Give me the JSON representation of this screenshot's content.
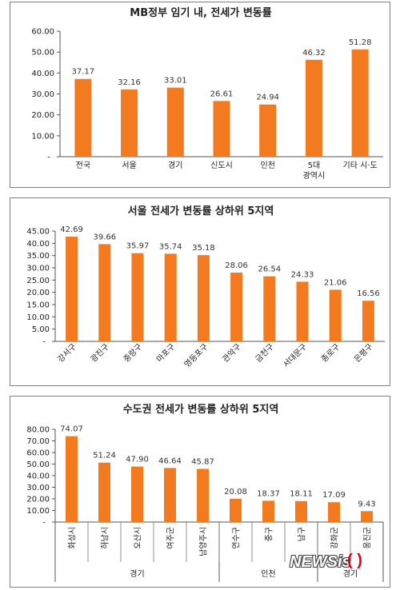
{
  "chart_data": [
    {
      "type": "bar",
      "title": "MB정부 임기 내, 전세가 변동률",
      "categories": [
        "전국",
        "서울",
        "경기",
        "신도시",
        "인천",
        "5대\n광역시",
        "기타 시·도"
      ],
      "values": [
        37.17,
        32.16,
        33.01,
        26.61,
        24.94,
        46.32,
        51.28
      ],
      "value_labels": [
        "37.17",
        "32.16",
        "33.01",
        "26.61",
        "24.94",
        "46.32",
        "51.28"
      ],
      "yticks": [
        "60.00",
        "50.00",
        "40.00",
        "30.00",
        "20.00",
        "10.00",
        "-"
      ],
      "ylim": [
        0,
        60
      ],
      "grid": false,
      "color": "#F47A1F"
    },
    {
      "type": "bar",
      "title": "서울 전세가 변동률 상하위 5지역",
      "categories": [
        "강서구",
        "광진구",
        "중랑구",
        "마포구",
        "영등포구",
        "관악구",
        "금천구",
        "서대문구",
        "종로구",
        "은평구"
      ],
      "values": [
        42.69,
        39.66,
        35.97,
        35.74,
        35.18,
        28.06,
        26.54,
        24.33,
        21.06,
        16.56
      ],
      "value_labels": [
        "42.69",
        "39.66",
        "35.97",
        "35.74",
        "35.18",
        "28.06",
        "26.54",
        "24.33",
        "21.06",
        "16.56"
      ],
      "yticks": [
        "45.00",
        "40.00",
        "35.00",
        "30.00",
        "25.00",
        "20.00",
        "15.00",
        "10.00",
        "5.00",
        "-"
      ],
      "ylim": [
        0,
        45
      ],
      "grid": false,
      "color": "#F47A1F"
    },
    {
      "type": "bar",
      "title": "수도권 전세가 변동률 상하위 5지역",
      "categories": [
        "화성시",
        "하남시",
        "오산시",
        "여주군",
        "남양주시",
        "연수구",
        "중구",
        "남구",
        "강화군",
        "옹진군"
      ],
      "values": [
        74.07,
        51.24,
        47.9,
        46.64,
        45.87,
        20.08,
        18.37,
        18.11,
        17.09,
        9.43
      ],
      "value_labels": [
        "74.07",
        "51.24",
        "47.90",
        "46.64",
        "45.87",
        "20.08",
        "18.37",
        "18.11",
        "17.09",
        "9.43"
      ],
      "groups": [
        {
          "label": "경기",
          "count": 5
        },
        {
          "label": "인천",
          "count": 3
        },
        {
          "label": "경기",
          "count": 2
        }
      ],
      "yticks": [
        "80.00",
        "70.00",
        "60.00",
        "50.00",
        "40.00",
        "30.00",
        "20.00",
        "10.00",
        "-"
      ],
      "ylim": [
        0,
        80
      ],
      "grid": false,
      "color": "#F47A1F"
    }
  ],
  "watermark": {
    "logo": "NEWSis",
    "paren": "( )"
  }
}
